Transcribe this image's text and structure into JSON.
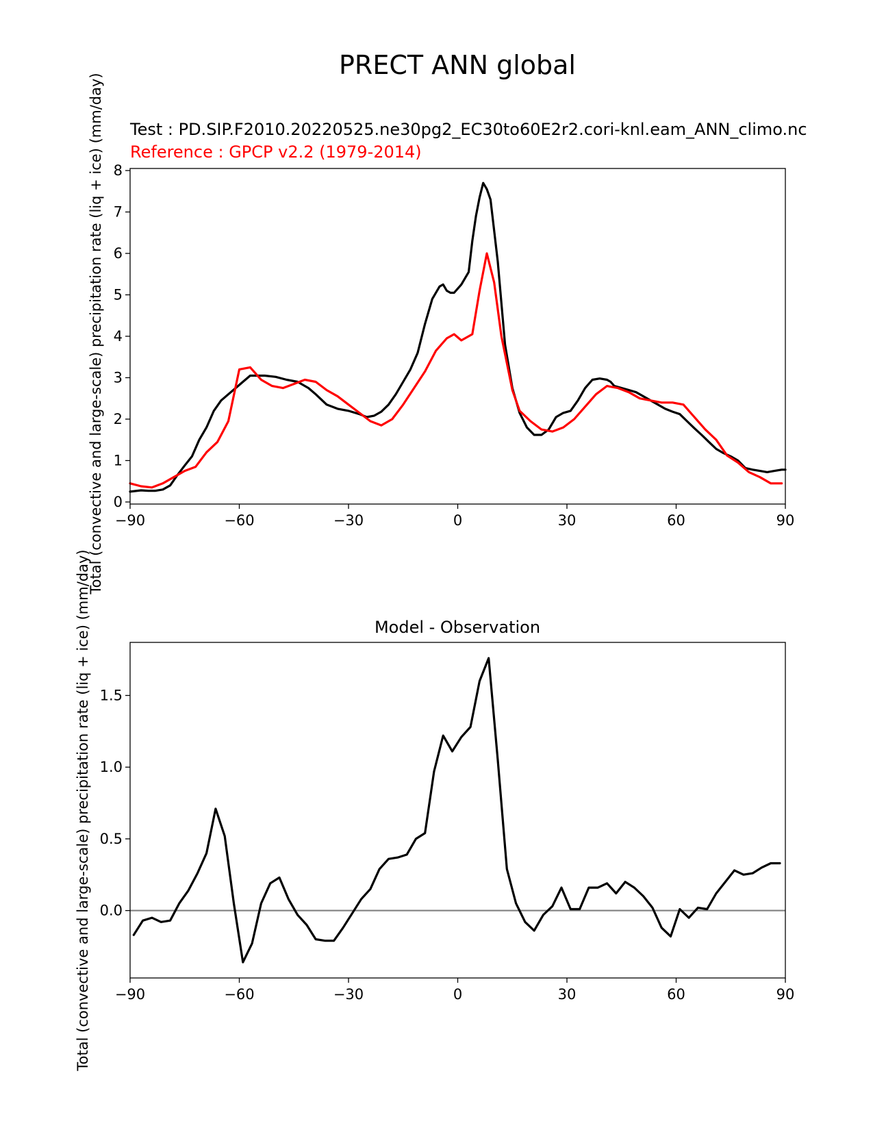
{
  "figure": {
    "title": "PRECT ANN global"
  },
  "chart_data": [
    {
      "type": "line",
      "test_label": "Test : PD.SIP.F2010.20220525.ne30pg2_EC30to60E2r2.cori-knl.eam_ANN_climo.nc",
      "reference_label": "Reference : GPCP v2.2 (1979-2014)",
      "ylabel": "Total (convective and large-scale) precipitation rate (liq + ice) (mm/day)",
      "xlim": [
        -90,
        90
      ],
      "ylim": [
        -0.05,
        8.05
      ],
      "xticks": [
        -90,
        -60,
        -30,
        0,
        30,
        60,
        90
      ],
      "xtick_labels": [
        "−90",
        "−60",
        "−30",
        "0",
        "30",
        "60",
        "90"
      ],
      "yticks": [
        0,
        1,
        2,
        3,
        4,
        5,
        6,
        7,
        8
      ],
      "ytick_labels": [
        "0",
        "1",
        "2",
        "3",
        "4",
        "5",
        "6",
        "7",
        "8"
      ],
      "series": [
        {
          "color": "#000000",
          "x": [
            -90,
            -87,
            -85,
            -83,
            -81,
            -79,
            -77,
            -75,
            -73,
            -71,
            -69,
            -67,
            -65,
            -63,
            -61,
            -59,
            -57,
            -55,
            -53,
            -50,
            -47,
            -44,
            -41,
            -39,
            -36,
            -33,
            -30,
            -27,
            -25,
            -23,
            -21,
            -19,
            -17,
            -15,
            -13,
            -11,
            -9,
            -7,
            -5,
            -4,
            -3,
            -2,
            -1,
            1,
            3,
            4,
            5,
            6,
            7,
            8,
            9,
            11,
            13,
            15,
            17,
            19,
            21,
            23,
            25,
            27,
            29,
            31,
            33,
            35,
            37,
            39,
            41,
            42,
            43,
            45,
            47,
            49,
            51,
            53,
            55,
            57,
            59,
            61,
            63,
            65,
            67,
            69,
            71,
            73,
            75,
            77,
            79,
            81,
            83,
            85,
            87,
            89,
            90
          ],
          "y": [
            0.25,
            0.28,
            0.27,
            0.27,
            0.3,
            0.4,
            0.65,
            0.88,
            1.1,
            1.5,
            1.8,
            2.2,
            2.45,
            2.6,
            2.75,
            2.9,
            3.05,
            3.05,
            3.05,
            3.02,
            2.95,
            2.9,
            2.75,
            2.6,
            2.35,
            2.25,
            2.2,
            2.12,
            2.05,
            2.08,
            2.18,
            2.35,
            2.6,
            2.9,
            3.2,
            3.6,
            4.3,
            4.9,
            5.2,
            5.25,
            5.1,
            5.05,
            5.05,
            5.25,
            5.55,
            6.3,
            6.9,
            7.35,
            7.7,
            7.55,
            7.3,
            5.8,
            3.8,
            2.75,
            2.15,
            1.8,
            1.62,
            1.62,
            1.75,
            2.05,
            2.15,
            2.2,
            2.45,
            2.75,
            2.95,
            2.98,
            2.95,
            2.9,
            2.8,
            2.75,
            2.7,
            2.65,
            2.55,
            2.45,
            2.35,
            2.25,
            2.18,
            2.12,
            1.95,
            1.78,
            1.62,
            1.45,
            1.28,
            1.18,
            1.1,
            1.0,
            0.82,
            0.78,
            0.75,
            0.72,
            0.75,
            0.78,
            0.78
          ]
        },
        {
          "color": "#ff0000",
          "x": [
            -90,
            -87,
            -84,
            -81,
            -78,
            -75,
            -72,
            -69,
            -66,
            -63,
            -60,
            -57,
            -54,
            -51,
            -48,
            -45,
            -42,
            -39,
            -36,
            -33,
            -30,
            -27,
            -24,
            -21,
            -18,
            -15,
            -12,
            -9,
            -6,
            -3,
            -1,
            1,
            4,
            6,
            8,
            10,
            12,
            15,
            17,
            20,
            23,
            26,
            29,
            32,
            35,
            38,
            41,
            44,
            47,
            50,
            53,
            56,
            59,
            62,
            65,
            68,
            71,
            74,
            77,
            80,
            83,
            86,
            89
          ],
          "y": [
            0.45,
            0.38,
            0.35,
            0.45,
            0.6,
            0.75,
            0.85,
            1.2,
            1.45,
            1.95,
            3.2,
            3.25,
            2.95,
            2.8,
            2.75,
            2.85,
            2.95,
            2.9,
            2.7,
            2.55,
            2.35,
            2.15,
            1.95,
            1.85,
            2.0,
            2.35,
            2.75,
            3.15,
            3.65,
            3.95,
            4.05,
            3.9,
            4.05,
            5.1,
            6.0,
            5.3,
            4.0,
            2.7,
            2.2,
            1.95,
            1.75,
            1.7,
            1.8,
            2.0,
            2.3,
            2.6,
            2.8,
            2.75,
            2.65,
            2.5,
            2.45,
            2.4,
            2.4,
            2.35,
            2.05,
            1.75,
            1.5,
            1.12,
            0.95,
            0.72,
            0.6,
            0.45,
            0.45
          ]
        }
      ]
    },
    {
      "type": "line",
      "title": "Model - Observation",
      "ylabel": "Total (convective and large-scale) precipitation rate (liq + ice) (mm/day)",
      "xlim": [
        -90,
        90
      ],
      "ylim": [
        -0.47,
        1.87
      ],
      "xticks": [
        -90,
        -60,
        -30,
        0,
        30,
        60,
        90
      ],
      "xtick_labels": [
        "−90",
        "−60",
        "−30",
        "0",
        "30",
        "60",
        "90"
      ],
      "yticks": [
        0.0,
        0.5,
        1.0,
        1.5
      ],
      "ytick_labels": [
        "0.0",
        "0.5",
        "1.0",
        "1.5"
      ],
      "zero_line_color": "#808080",
      "series": [
        {
          "color": "#000000",
          "x": [
            -89,
            -86.5,
            -84,
            -81.5,
            -79,
            -76.5,
            -74,
            -71.5,
            -69,
            -66.5,
            -64,
            -61.5,
            -59,
            -56.5,
            -54,
            -51.5,
            -49,
            -46.5,
            -44,
            -41.5,
            -39,
            -36.5,
            -34,
            -31.5,
            -29,
            -26.5,
            -24,
            -21.5,
            -19,
            -16.5,
            -14,
            -11.5,
            -9,
            -6.5,
            -4,
            -1.5,
            1,
            3.5,
            6,
            8.5,
            11,
            13.5,
            16,
            18.5,
            21,
            23.5,
            26,
            28.5,
            31,
            33.5,
            36,
            38.5,
            41,
            43.5,
            46,
            48.5,
            51,
            53.5,
            56,
            58.5,
            61,
            63.5,
            66,
            68.5,
            71,
            73.5,
            76,
            78.5,
            81,
            83.5,
            86,
            88.5
          ],
          "y": [
            -0.17,
            -0.07,
            -0.05,
            -0.08,
            -0.07,
            0.05,
            0.14,
            0.26,
            0.4,
            0.71,
            0.52,
            0.05,
            -0.36,
            -0.23,
            0.05,
            0.19,
            0.23,
            0.08,
            -0.03,
            -0.1,
            -0.2,
            -0.21,
            -0.21,
            -0.12,
            -0.02,
            0.08,
            0.15,
            0.29,
            0.36,
            0.37,
            0.39,
            0.5,
            0.54,
            0.97,
            1.22,
            1.11,
            1.21,
            1.28,
            1.6,
            1.76,
            1.05,
            0.29,
            0.05,
            -0.08,
            -0.14,
            -0.03,
            0.03,
            0.16,
            0.01,
            0.01,
            0.16,
            0.16,
            0.19,
            0.12,
            0.2,
            0.16,
            0.1,
            0.02,
            -0.12,
            -0.18,
            0.01,
            -0.05,
            0.02,
            0.01,
            0.12,
            0.2,
            0.28,
            0.25,
            0.26,
            0.3,
            0.33,
            0.33
          ]
        }
      ]
    }
  ]
}
